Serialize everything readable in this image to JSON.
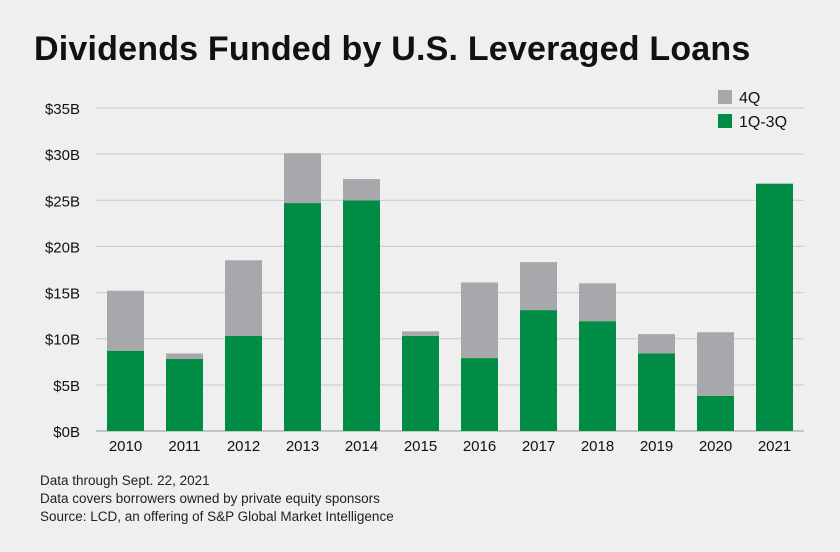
{
  "header": {
    "title": "Dividends Funded by U.S. Leveraged Loans"
  },
  "footer": {
    "note1": "Data through Sept. 22, 2021",
    "note2": "Data covers borrowers owned by private equity sponsors",
    "source": "Source: LCD, an offering of S&P Global Market Intelligence"
  },
  "chart_data": {
    "type": "bar",
    "stacked": true,
    "title": "Dividends Funded by U.S. Leveraged Loans",
    "xlabel": "",
    "ylabel": "",
    "categories": [
      "2010",
      "2011",
      "2012",
      "2013",
      "2014",
      "2015",
      "2016",
      "2017",
      "2018",
      "2019",
      "2020",
      "2021"
    ],
    "series": [
      {
        "name": "1Q-3Q",
        "color": "#008c45",
        "values": [
          8.7,
          7.8,
          10.3,
          24.7,
          25.0,
          10.3,
          7.9,
          13.1,
          11.9,
          8.4,
          3.8,
          26.8
        ]
      },
      {
        "name": "4Q",
        "color": "#a7a8ab",
        "values": [
          6.5,
          0.6,
          8.2,
          5.4,
          2.3,
          0.5,
          8.2,
          5.2,
          4.1,
          2.1,
          6.9,
          0
        ]
      }
    ],
    "ylim": [
      0,
      35
    ],
    "yticks": [
      0,
      5,
      10,
      15,
      20,
      25,
      30,
      35
    ],
    "ytick_labels": [
      "$0B",
      "$5B",
      "$10B",
      "$15B",
      "$20B",
      "$25B",
      "$30B",
      "$35B"
    ],
    "grid": true,
    "legend_position": "top-right",
    "legend_order": [
      "4Q",
      "1Q-3Q"
    ]
  }
}
